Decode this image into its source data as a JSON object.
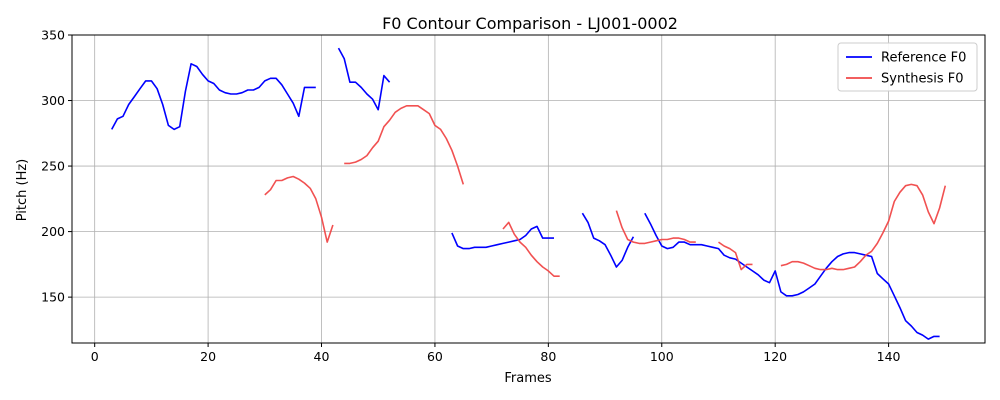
{
  "chart_data": {
    "type": "line",
    "title": "F0 Contour Comparison - LJ001-0002",
    "xlabel": "Frames",
    "ylabel": "Pitch (Hz)",
    "xlim": [
      -4,
      157
    ],
    "ylim": [
      115,
      350
    ],
    "xticks": [
      0,
      20,
      40,
      60,
      80,
      100,
      120,
      140
    ],
    "yticks": [
      150,
      200,
      250,
      300,
      350
    ],
    "grid": true,
    "legend_position": "top-right",
    "series": [
      {
        "name": "Reference F0",
        "color": "#0000ff",
        "segments": [
          [
            [
              3,
              278
            ],
            [
              4,
              286
            ],
            [
              5,
              288
            ],
            [
              6,
              297
            ],
            [
              7,
              303
            ],
            [
              8,
              309
            ],
            [
              9,
              315
            ],
            [
              10,
              315
            ],
            [
              11,
              309
            ],
            [
              12,
              297
            ],
            [
              13,
              281
            ],
            [
              14,
              278
            ],
            [
              15,
              280
            ],
            [
              16,
              307
            ],
            [
              17,
              328
            ],
            [
              18,
              326
            ],
            [
              19,
              320
            ],
            [
              20,
              315
            ],
            [
              21,
              313
            ],
            [
              22,
              308
            ],
            [
              23,
              306
            ],
            [
              24,
              305
            ],
            [
              25,
              305
            ],
            [
              26,
              306
            ],
            [
              27,
              308
            ],
            [
              28,
              308
            ],
            [
              29,
              310
            ],
            [
              30,
              315
            ],
            [
              31,
              317
            ],
            [
              32,
              317
            ],
            [
              33,
              312
            ],
            [
              34,
              305
            ],
            [
              35,
              298
            ],
            [
              36,
              288
            ],
            [
              37,
              310
            ],
            [
              38,
              310
            ],
            [
              39,
              310
            ]
          ],
          [
            [
              43,
              340
            ],
            [
              44,
              332
            ],
            [
              45,
              314
            ],
            [
              46,
              314
            ],
            [
              47,
              310
            ],
            [
              48,
              305
            ],
            [
              49,
              301
            ],
            [
              50,
              293
            ],
            [
              51,
              319
            ],
            [
              52,
              314
            ]
          ],
          [
            [
              63,
              199
            ],
            [
              64,
              189
            ],
            [
              65,
              187
            ],
            [
              66,
              187
            ],
            [
              67,
              188
            ],
            [
              68,
              188
            ],
            [
              69,
              188
            ],
            [
              70,
              189
            ],
            [
              71,
              190
            ],
            [
              72,
              191
            ],
            [
              73,
              192
            ],
            [
              74,
              193
            ],
            [
              75,
              194
            ],
            [
              76,
              197
            ],
            [
              77,
              202
            ],
            [
              78,
              204
            ],
            [
              79,
              195
            ],
            [
              80,
              195
            ],
            [
              81,
              195
            ]
          ],
          [
            [
              86,
              214
            ],
            [
              87,
              207
            ],
            [
              88,
              195
            ],
            [
              89,
              193
            ],
            [
              90,
              190
            ],
            [
              91,
              182
            ],
            [
              92,
              173
            ],
            [
              93,
              178
            ],
            [
              94,
              188
            ],
            [
              95,
              196
            ]
          ],
          [
            [
              97,
              214
            ],
            [
              98,
              206
            ],
            [
              99,
              197
            ],
            [
              100,
              189
            ],
            [
              101,
              187
            ],
            [
              102,
              188
            ],
            [
              103,
              192
            ],
            [
              104,
              192
            ],
            [
              105,
              190
            ],
            [
              106,
              190
            ],
            [
              107,
              190
            ],
            [
              108,
              189
            ],
            [
              109,
              188
            ],
            [
              110,
              187
            ],
            [
              111,
              182
            ],
            [
              112,
              180
            ],
            [
              113,
              179
            ],
            [
              114,
              176
            ],
            [
              115,
              173
            ],
            [
              116,
              170
            ],
            [
              117,
              167
            ],
            [
              118,
              163
            ],
            [
              119,
              161
            ],
            [
              120,
              170
            ],
            [
              121,
              154
            ],
            [
              122,
              151
            ],
            [
              123,
              151
            ],
            [
              124,
              152
            ],
            [
              125,
              154
            ],
            [
              126,
              157
            ],
            [
              127,
              160
            ],
            [
              128,
              166
            ],
            [
              129,
              172
            ],
            [
              130,
              177
            ],
            [
              131,
              181
            ],
            [
              132,
              183
            ],
            [
              133,
              184
            ],
            [
              134,
              184
            ],
            [
              135,
              183
            ],
            [
              136,
              182
            ],
            [
              137,
              181
            ],
            [
              138,
              168
            ],
            [
              139,
              164
            ],
            [
              140,
              160
            ],
            [
              141,
              151
            ],
            [
              142,
              142
            ],
            [
              143,
              132
            ],
            [
              144,
              128
            ],
            [
              145,
              123
            ],
            [
              146,
              121
            ],
            [
              147,
              118
            ],
            [
              148,
              120
            ],
            [
              149,
              120
            ]
          ]
        ]
      },
      {
        "name": "Synthesis F0",
        "color": "#f04848",
        "segments": [
          [
            [
              30,
              228
            ],
            [
              31,
              232
            ],
            [
              32,
              239
            ],
            [
              33,
              239
            ],
            [
              34,
              241
            ],
            [
              35,
              242
            ],
            [
              36,
              240
            ],
            [
              37,
              237
            ],
            [
              38,
              233
            ],
            [
              39,
              225
            ],
            [
              40,
              211
            ],
            [
              41,
              192
            ],
            [
              42,
              205
            ]
          ],
          [
            [
              44,
              252
            ],
            [
              45,
              252
            ],
            [
              46,
              253
            ],
            [
              47,
              255
            ],
            [
              48,
              258
            ],
            [
              49,
              264
            ],
            [
              50,
              269
            ],
            [
              51,
              280
            ],
            [
              52,
              285
            ],
            [
              53,
              291
            ],
            [
              54,
              294
            ],
            [
              55,
              296
            ],
            [
              56,
              296
            ],
            [
              57,
              296
            ],
            [
              58,
              293
            ],
            [
              59,
              290
            ],
            [
              60,
              281
            ],
            [
              61,
              278
            ],
            [
              62,
              271
            ],
            [
              63,
              262
            ],
            [
              64,
              250
            ],
            [
              65,
              236
            ]
          ],
          [
            [
              72,
              202
            ],
            [
              73,
              207
            ],
            [
              74,
              198
            ],
            [
              75,
              192
            ],
            [
              76,
              188
            ],
            [
              77,
              182
            ],
            [
              78,
              177
            ],
            [
              79,
              173
            ],
            [
              80,
              170
            ],
            [
              81,
              166
            ],
            [
              82,
              166
            ]
          ],
          [
            [
              92,
              216
            ],
            [
              93,
              203
            ],
            [
              94,
              194
            ],
            [
              95,
              192
            ],
            [
              96,
              191
            ],
            [
              97,
              191
            ],
            [
              98,
              192
            ],
            [
              99,
              193
            ],
            [
              100,
              194
            ],
            [
              101,
              194
            ],
            [
              102,
              195
            ],
            [
              103,
              195
            ],
            [
              104,
              194
            ],
            [
              105,
              192
            ],
            [
              106,
              192
            ]
          ],
          [
            [
              110,
              192
            ],
            [
              111,
              189
            ],
            [
              112,
              187
            ],
            [
              113,
              184
            ],
            [
              114,
              171
            ],
            [
              115,
              175
            ],
            [
              116,
              175
            ]
          ],
          [
            [
              121,
              174
            ],
            [
              122,
              175
            ],
            [
              123,
              177
            ],
            [
              124,
              177
            ],
            [
              125,
              176
            ],
            [
              126,
              174
            ],
            [
              127,
              172
            ],
            [
              128,
              171
            ],
            [
              129,
              171
            ],
            [
              130,
              172
            ],
            [
              131,
              171
            ],
            [
              132,
              171
            ],
            [
              133,
              172
            ],
            [
              134,
              173
            ],
            [
              135,
              177
            ],
            [
              136,
              182
            ],
            [
              137,
              185
            ],
            [
              138,
              191
            ],
            [
              139,
              199
            ],
            [
              140,
              208
            ],
            [
              141,
              223
            ],
            [
              142,
              230
            ],
            [
              143,
              235
            ],
            [
              144,
              236
            ],
            [
              145,
              235
            ],
            [
              146,
              228
            ],
            [
              147,
              215
            ],
            [
              148,
              206
            ],
            [
              149,
              218
            ],
            [
              150,
              235
            ]
          ]
        ]
      }
    ]
  }
}
